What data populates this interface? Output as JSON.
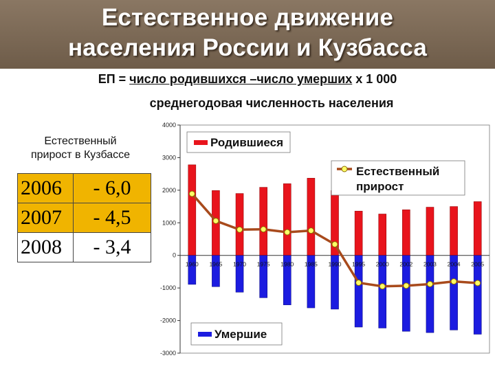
{
  "slide": {
    "title": "Естественное движение\nнаселения России и Кузбасса",
    "formula_prefix": "ЕП = ",
    "formula_numerator": "число родившихся –число умерших",
    "formula_multiplier": "  х 1 000",
    "formula_denominator": "среднегодовая численность населения"
  },
  "kuzbass": {
    "caption": "Естественный\nприрост в Кузбассе",
    "rows": [
      {
        "year": "2006",
        "value": "- 6,0"
      },
      {
        "year": "2007",
        "value": "- 4,5"
      },
      {
        "year": "2008",
        "value": "- 3,4"
      }
    ]
  },
  "chart_data": {
    "type": "bar",
    "categories": [
      "1960",
      "1965",
      "1970",
      "1975",
      "1980",
      "1985",
      "1990",
      "1995",
      "2000",
      "2002",
      "2003",
      "2004",
      "2005"
    ],
    "ylim": [
      -3000,
      4000
    ],
    "yticks": [
      "4000",
      "3000",
      "2000",
      "1000",
      "0",
      "-1000",
      "-2000",
      "-3000"
    ],
    "grid": false,
    "series": [
      {
        "name": "Родившиеся",
        "kind": "bar",
        "color": "#e8141c",
        "values": [
          2780,
          1990,
          1900,
          2090,
          2200,
          2370,
          1990,
          1360,
          1270,
          1400,
          1480,
          1500,
          1650
        ]
      },
      {
        "name": "Умершие",
        "kind": "bar",
        "color": "#1c1ce0",
        "values": [
          -890,
          -960,
          -1130,
          -1300,
          -1520,
          -1610,
          -1650,
          -2200,
          -2230,
          -2330,
          -2370,
          -2290,
          -2420
        ]
      },
      {
        "name": "Естественный прирост",
        "kind": "line",
        "color": "#a84a1c",
        "marker_color": "#ffff66",
        "values": [
          1890,
          1060,
          790,
          800,
          710,
          760,
          340,
          -840,
          -950,
          -930,
          -880,
          -800,
          -850
        ]
      }
    ]
  }
}
